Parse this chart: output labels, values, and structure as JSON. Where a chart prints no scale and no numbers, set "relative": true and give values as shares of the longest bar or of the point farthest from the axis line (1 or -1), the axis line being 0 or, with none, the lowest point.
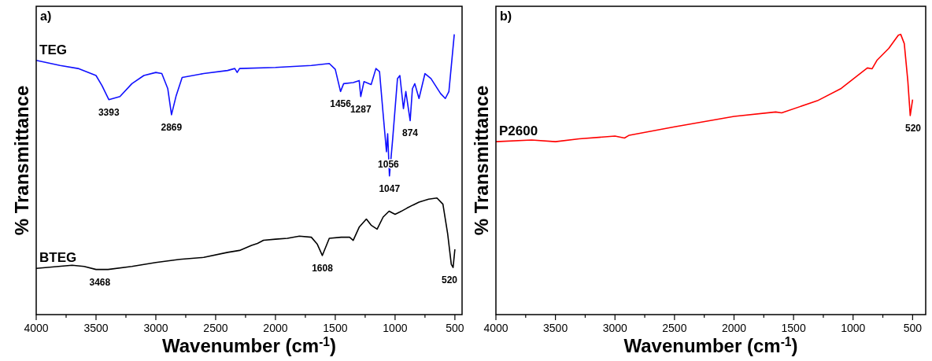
{
  "chart_data": [
    {
      "type": "line",
      "relative": true,
      "xlabel": "Wavenumber (cm$^{-1}$)",
      "ylabel": "% Transmittance",
      "xlim": [
        4000,
        440
      ],
      "xticks": [
        4000,
        {
          "value": 3750,
          "label": null
        },
        3500,
        {
          "value": 3250,
          "label": null
        },
        3000,
        {
          "value": 2750,
          "label": null
        },
        2500,
        {
          "value": 2250,
          "label": null
        },
        2000,
        {
          "value": 1750,
          "label": null
        },
        1500,
        {
          "value": 1250,
          "label": null
        },
        1000,
        {
          "value": 750,
          "label": null
        },
        500
      ],
      "grid": false,
      "line_style": "solid",
      "marker": "none",
      "annotations": [
        "a)",
        {
          "text": "3393",
          "x": 3393,
          "y": 0.767
        },
        {
          "text": "2869",
          "x": 2869,
          "y": 0.713
        },
        {
          "text": "1456",
          "x": 1456,
          "y": 0.796
        },
        {
          "text": "1287",
          "x": 1287,
          "y": 0.778
        },
        {
          "text": "1056",
          "x": 1056,
          "y": 0.581
        },
        {
          "text": "1047",
          "x": 1047,
          "y": 0.495
        },
        {
          "text": "874",
          "x": 874,
          "y": 0.692
        },
        {
          "text": "3468",
          "x": 3468,
          "y": 0.161
        },
        {
          "text": "1608",
          "x": 1608,
          "y": 0.211
        },
        {
          "text": "520",
          "x": 520,
          "y": 0.168
        }
      ],
      "series": [
        {
          "name": "TEG",
          "color": "#1010ff",
          "x": [
            4000,
            3800,
            3650,
            3500,
            3450,
            3393,
            3300,
            3200,
            3100,
            3000,
            2950,
            2900,
            2869,
            2830,
            2780,
            2600,
            2400,
            2340,
            2320,
            2300,
            2000,
            1700,
            1550,
            1500,
            1456,
            1430,
            1350,
            1300,
            1287,
            1260,
            1200,
            1160,
            1130,
            1100,
            1072,
            1062,
            1047,
            1020,
            980,
            960,
            930,
            910,
            874,
            855,
            835,
            800,
            750,
            700,
            620,
            580,
            550,
            520,
            505
          ],
          "values": [
            0.907,
            0.889,
            0.878,
            0.853,
            0.817,
            0.767,
            0.778,
            0.824,
            0.853,
            0.864,
            0.86,
            0.806,
            0.713,
            0.781,
            0.846,
            0.86,
            0.871,
            0.878,
            0.864,
            0.878,
            0.882,
            0.889,
            0.896,
            0.875,
            0.796,
            0.824,
            0.828,
            0.835,
            0.778,
            0.831,
            0.821,
            0.878,
            0.867,
            0.717,
            0.581,
            0.645,
            0.495,
            0.627,
            0.842,
            0.853,
            0.735,
            0.796,
            0.692,
            0.806,
            0.824,
            0.771,
            0.86,
            0.842,
            0.789,
            0.771,
            0.796,
            0.932,
            1.0
          ]
        },
        {
          "name": "BTEG",
          "color": "#000000",
          "x": [
            4000,
            3700,
            3600,
            3500,
            3400,
            3200,
            3000,
            2800,
            2600,
            2400,
            2300,
            2200,
            2150,
            2100,
            2000,
            1900,
            1800,
            1700,
            1650,
            1608,
            1550,
            1450,
            1380,
            1350,
            1300,
            1240,
            1200,
            1150,
            1100,
            1050,
            1000,
            960,
            900,
            850,
            800,
            720,
            650,
            600,
            560,
            530,
            515,
            500
          ],
          "values": [
            0.165,
            0.176,
            0.172,
            0.161,
            0.161,
            0.172,
            0.186,
            0.197,
            0.204,
            0.222,
            0.229,
            0.247,
            0.254,
            0.265,
            0.269,
            0.272,
            0.28,
            0.276,
            0.251,
            0.211,
            0.272,
            0.276,
            0.276,
            0.265,
            0.312,
            0.341,
            0.319,
            0.305,
            0.348,
            0.369,
            0.358,
            0.366,
            0.38,
            0.391,
            0.401,
            0.412,
            0.416,
            0.394,
            0.287,
            0.179,
            0.168,
            0.233
          ]
        }
      ]
    },
    {
      "type": "line",
      "relative": true,
      "xlabel": "Wavenumber (cm$^{-1}$)",
      "ylabel": "% Transmittance",
      "xlim": [
        4000,
        390
      ],
      "xticks": [
        4000,
        {
          "value": 3750,
          "label": null
        },
        3500,
        {
          "value": 3250,
          "label": null
        },
        3000,
        {
          "value": 2750,
          "label": null
        },
        2500,
        {
          "value": 2250,
          "label": null
        },
        2000,
        {
          "value": 1750,
          "label": null
        },
        1500,
        {
          "value": 1250,
          "label": null
        },
        1000,
        {
          "value": 750,
          "label": null
        },
        500
      ],
      "grid": false,
      "line_style": "solid",
      "marker": "none",
      "annotations": [
        "b)",
        {
          "text": "520",
          "x": 520,
          "y": 0.71
        }
      ],
      "series": [
        {
          "name": "P2600",
          "color": "#ff0000",
          "x": [
            4000,
            3700,
            3500,
            3300,
            3000,
            2920,
            2880,
            2500,
            2000,
            1650,
            1600,
            1300,
            1100,
            950,
            880,
            840,
            800,
            700,
            620,
            600,
            570,
            540,
            520,
            500
          ],
          "values": [
            0.617,
            0.623,
            0.617,
            0.627,
            0.637,
            0.63,
            0.64,
            0.67,
            0.707,
            0.723,
            0.72,
            0.763,
            0.807,
            0.857,
            0.88,
            0.877,
            0.907,
            0.95,
            0.997,
            1.0,
            0.967,
            0.833,
            0.71,
            0.767
          ]
        }
      ]
    }
  ]
}
